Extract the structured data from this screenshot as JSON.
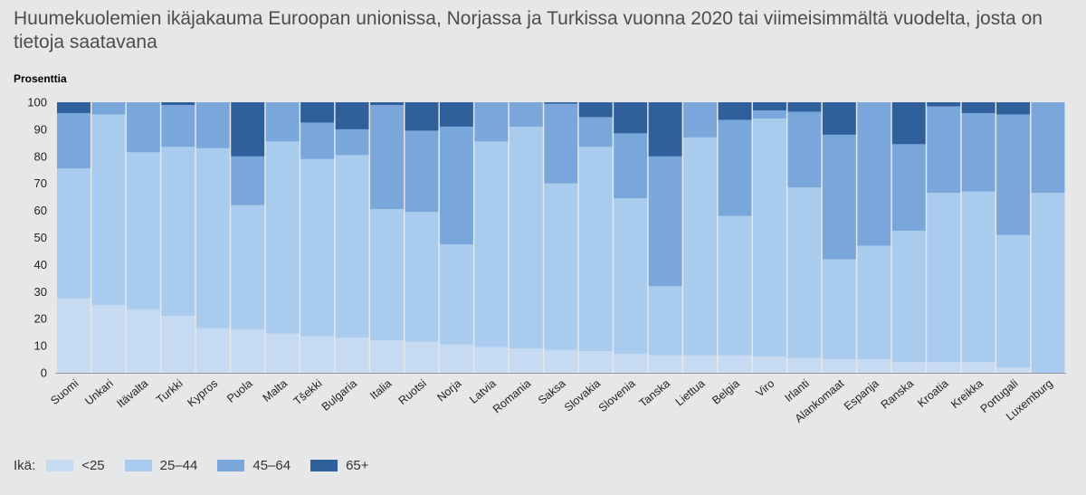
{
  "chart_data": {
    "type": "bar",
    "stacked": true,
    "title": "Huumekuolemien ikäjakauma Euroopan unionissa, Norjassa ja Turkissa vuonna 2020 tai viimeisimmältä vuodelta, josta on tietoja saatavana",
    "ylabel": "Prosenttia",
    "ylim": [
      0,
      100
    ],
    "yticks": [
      0,
      10,
      20,
      30,
      40,
      50,
      60,
      70,
      80,
      90,
      100
    ],
    "legend_title": "Ikä:",
    "legend_position": "bottom-left",
    "categories": [
      "Suomi",
      "Unkari",
      "Itävalta",
      "Turkki",
      "Kypros",
      "Puola",
      "Malta",
      "Tšekki",
      "Bulgaria",
      "Italia",
      "Ruotsi",
      "Norja",
      "Latvia",
      "Romania",
      "Saksa",
      "Slovakia",
      "Slovenia",
      "Tanska",
      "Liettua",
      "Belgia",
      "Viro",
      "Irlanti",
      "Alankomaat",
      "Espanja",
      "Ranska",
      "Kroatia",
      "Kreikka",
      "Portugali",
      "Luxemburg"
    ],
    "series": [
      {
        "name": "<25",
        "color": "#c6dbf2",
        "values": [
          27.5,
          25,
          23.5,
          21,
          16.5,
          16,
          14.5,
          13.5,
          13,
          12,
          11.5,
          10.5,
          9.5,
          9,
          8.5,
          8,
          7,
          6.5,
          6.5,
          6.5,
          6,
          5.5,
          5,
          5,
          4,
          4,
          4,
          2,
          0
        ]
      },
      {
        "name": "25–44",
        "color": "#a9cbed",
        "values": [
          48,
          70.5,
          58,
          62.5,
          66.5,
          46,
          71,
          65.5,
          67.5,
          48.5,
          48,
          37,
          76,
          82,
          61.5,
          75.5,
          57.5,
          25.5,
          80.5,
          51.5,
          88,
          63,
          37,
          42,
          48.5,
          62.5,
          63,
          49,
          66.5
        ]
      },
      {
        "name": "45–64",
        "color": "#7aa7db",
        "values": [
          20.5,
          4.5,
          18.5,
          15.5,
          17,
          18,
          14.5,
          13.5,
          9.5,
          38.5,
          30,
          43.5,
          14.5,
          9,
          29.5,
          11,
          24,
          48,
          13,
          35.5,
          3,
          28,
          46,
          53,
          32,
          32,
          29,
          44.5,
          33.5
        ]
      },
      {
        "name": "65+",
        "color": "#2f609b",
        "values": [
          4,
          0,
          0,
          1,
          0,
          20,
          0,
          7.5,
          10,
          1,
          10.5,
          9,
          0,
          0,
          0.5,
          5.5,
          11.5,
          20,
          0,
          6.5,
          3,
          3.5,
          12,
          0,
          15.5,
          1.5,
          4,
          4.5,
          0
        ]
      }
    ]
  }
}
